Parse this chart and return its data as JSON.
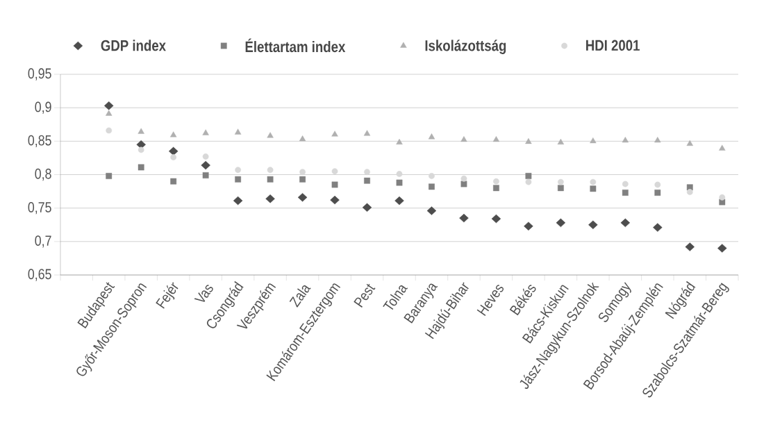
{
  "chart_data": {
    "type": "scatter",
    "categories": [
      null,
      "Budapest",
      "Győr-Moson-Sopron",
      "Fejér",
      "Vas",
      "Csongrád",
      "Veszprém",
      "Zala",
      "Komárom-Esztergom",
      "Pest",
      "Tolna",
      "Baranya",
      "Hajdú-Bihar",
      "Heves",
      "Békés",
      "Bács-Kiskun",
      "Jász-Nagykun-Szolnok",
      "Somogy",
      "Borsod-Abaúj-Zemplén",
      "Nógrád",
      "Szabolcs-Szatmár-Bereg"
    ],
    "series": [
      {
        "name": "GDP index",
        "color": "#4d4d4d",
        "marker": "diamond",
        "values": [
          null,
          0.903,
          0.845,
          0.835,
          0.814,
          0.761,
          0.764,
          0.766,
          0.762,
          0.751,
          0.761,
          0.746,
          0.735,
          0.734,
          0.723,
          0.728,
          0.725,
          0.728,
          0.721,
          0.692,
          0.69
        ]
      },
      {
        "name": "Élettartam index",
        "color": "#808080",
        "marker": "square",
        "values": [
          null,
          0.798,
          0.811,
          0.79,
          0.799,
          0.793,
          0.793,
          0.793,
          0.785,
          0.791,
          0.788,
          0.782,
          0.786,
          0.78,
          0.798,
          0.78,
          0.779,
          0.773,
          0.773,
          0.781,
          0.759
        ]
      },
      {
        "name": "Iskolázottság",
        "color": "#b0b0b0",
        "marker": "triangle",
        "values": [
          null,
          0.891,
          0.864,
          0.859,
          0.862,
          0.863,
          0.858,
          0.853,
          0.86,
          0.861,
          0.848,
          0.856,
          0.852,
          0.852,
          0.849,
          0.848,
          0.85,
          0.851,
          0.851,
          0.846,
          0.839
        ]
      },
      {
        "name": "HDI 2001",
        "color": "#d8d8d8",
        "marker": "circle",
        "values": [
          null,
          0.866,
          0.837,
          0.826,
          0.827,
          0.807,
          0.807,
          0.804,
          0.805,
          0.804,
          0.801,
          0.798,
          0.794,
          0.79,
          0.789,
          0.789,
          0.789,
          0.786,
          0.785,
          0.774,
          0.766
        ]
      }
    ],
    "ylim": [
      0.65,
      0.95
    ],
    "yticks": [
      {
        "value": 0.65,
        "label": "0,65"
      },
      {
        "value": 0.7,
        "label": "0,7"
      },
      {
        "value": 0.75,
        "label": "0,75"
      },
      {
        "value": 0.8,
        "label": "0,8"
      },
      {
        "value": 0.85,
        "label": "0,85"
      },
      {
        "value": 0.9,
        "label": "0,9"
      },
      {
        "value": 0.95,
        "label": "0,95"
      }
    ],
    "grid": "y",
    "legend": "top"
  }
}
